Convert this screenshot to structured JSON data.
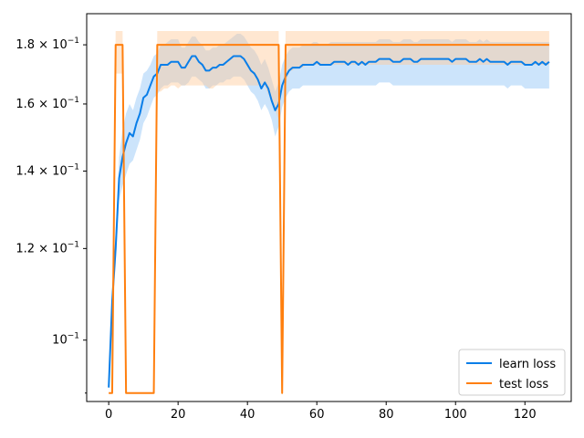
{
  "chart_data": {
    "type": "line",
    "title": "",
    "xlabel": "",
    "ylabel": "",
    "y_scale": "log",
    "xlim": [
      -6.35,
      133.35
    ],
    "ylim": [
      0.0885,
      0.1915
    ],
    "x_ticks": [
      0,
      20,
      40,
      60,
      80,
      100,
      120
    ],
    "x_tick_labels": [
      "0",
      "20",
      "40",
      "60",
      "80",
      "100",
      "120"
    ],
    "y_ticks": [
      0.1,
      0.12,
      0.14,
      0.16,
      0.18
    ],
    "y_tick_labels": [
      {
        "mantissa": "",
        "base": "10",
        "exp": "−1"
      },
      {
        "mantissa": "1.2",
        "base": "10",
        "exp": "−1"
      },
      {
        "mantissa": "1.4",
        "base": "10",
        "exp": "−1"
      },
      {
        "mantissa": "1.6",
        "base": "10",
        "exp": "−1"
      },
      {
        "mantissa": "1.8",
        "base": "10",
        "exp": "−1"
      }
    ],
    "grid": false,
    "legend": {
      "placement": "lower-right",
      "entries": [
        "learn loss",
        "test loss"
      ]
    },
    "series": [
      {
        "name": "learn loss",
        "color": "#0a7ee8",
        "band_color": "#8ec4f7",
        "x": [
          0,
          1,
          2,
          3,
          4,
          5,
          6,
          7,
          8,
          9,
          10,
          11,
          12,
          13,
          14,
          15,
          16,
          17,
          18,
          19,
          20,
          21,
          22,
          23,
          24,
          25,
          26,
          27,
          28,
          29,
          30,
          31,
          32,
          33,
          34,
          35,
          36,
          37,
          38,
          39,
          40,
          41,
          42,
          43,
          44,
          45,
          46,
          47,
          48,
          49,
          50,
          51,
          52,
          53,
          54,
          55,
          56,
          57,
          58,
          59,
          60,
          61,
          62,
          63,
          64,
          65,
          66,
          67,
          68,
          69,
          70,
          71,
          72,
          73,
          74,
          75,
          76,
          77,
          78,
          79,
          80,
          81,
          82,
          83,
          84,
          85,
          86,
          87,
          88,
          89,
          90,
          91,
          92,
          93,
          94,
          95,
          96,
          97,
          98,
          99,
          100,
          101,
          102,
          103,
          104,
          105,
          106,
          107,
          108,
          109,
          110,
          111,
          112,
          113,
          114,
          115,
          116,
          117,
          118,
          119,
          120,
          121,
          122,
          123,
          124,
          125,
          126,
          127
        ],
        "y": [
          0.091,
          0.108,
          0.12,
          0.138,
          0.144,
          0.148,
          0.151,
          0.15,
          0.154,
          0.157,
          0.162,
          0.163,
          0.166,
          0.169,
          0.17,
          0.173,
          0.173,
          0.173,
          0.174,
          0.174,
          0.174,
          0.172,
          0.172,
          0.174,
          0.176,
          0.176,
          0.174,
          0.173,
          0.171,
          0.171,
          0.172,
          0.172,
          0.173,
          0.173,
          0.174,
          0.175,
          0.176,
          0.176,
          0.176,
          0.175,
          0.173,
          0.171,
          0.17,
          0.168,
          0.165,
          0.167,
          0.165,
          0.161,
          0.158,
          0.16,
          0.166,
          0.169,
          0.171,
          0.172,
          0.172,
          0.172,
          0.173,
          0.173,
          0.173,
          0.173,
          0.174,
          0.173,
          0.173,
          0.173,
          0.173,
          0.174,
          0.174,
          0.174,
          0.174,
          0.173,
          0.174,
          0.174,
          0.173,
          0.174,
          0.173,
          0.174,
          0.174,
          0.174,
          0.175,
          0.175,
          0.175,
          0.175,
          0.174,
          0.174,
          0.174,
          0.175,
          0.175,
          0.175,
          0.174,
          0.174,
          0.175,
          0.175,
          0.175,
          0.175,
          0.175,
          0.175,
          0.175,
          0.175,
          0.175,
          0.174,
          0.175,
          0.175,
          0.175,
          0.175,
          0.174,
          0.174,
          0.174,
          0.175,
          0.174,
          0.175,
          0.174,
          0.174,
          0.174,
          0.174,
          0.174,
          0.173,
          0.174,
          0.174,
          0.174,
          0.174,
          0.173,
          0.173,
          0.173,
          0.174,
          0.173,
          0.174,
          0.173,
          0.174
        ],
        "lower": [
          0.09,
          0.105,
          0.116,
          0.132,
          0.136,
          0.139,
          0.142,
          0.143,
          0.146,
          0.149,
          0.154,
          0.156,
          0.159,
          0.162,
          0.163,
          0.165,
          0.166,
          0.166,
          0.167,
          0.167,
          0.167,
          0.166,
          0.166,
          0.167,
          0.169,
          0.169,
          0.168,
          0.167,
          0.165,
          0.165,
          0.166,
          0.166,
          0.167,
          0.167,
          0.168,
          0.168,
          0.169,
          0.169,
          0.169,
          0.168,
          0.166,
          0.164,
          0.163,
          0.161,
          0.158,
          0.16,
          0.158,
          0.155,
          0.15,
          0.153,
          0.159,
          0.162,
          0.164,
          0.165,
          0.165,
          0.165,
          0.166,
          0.166,
          0.166,
          0.166,
          0.166,
          0.166,
          0.166,
          0.166,
          0.166,
          0.166,
          0.166,
          0.166,
          0.166,
          0.166,
          0.166,
          0.166,
          0.166,
          0.166,
          0.166,
          0.166,
          0.166,
          0.166,
          0.167,
          0.167,
          0.167,
          0.167,
          0.166,
          0.166,
          0.166,
          0.166,
          0.166,
          0.166,
          0.166,
          0.166,
          0.166,
          0.166,
          0.166,
          0.166,
          0.166,
          0.166,
          0.166,
          0.166,
          0.166,
          0.166,
          0.166,
          0.166,
          0.166,
          0.166,
          0.166,
          0.166,
          0.166,
          0.166,
          0.166,
          0.166,
          0.166,
          0.166,
          0.166,
          0.166,
          0.166,
          0.165,
          0.166,
          0.166,
          0.166,
          0.166,
          0.165,
          0.165,
          0.165,
          0.165,
          0.165,
          0.165,
          0.165,
          0.165
        ],
        "upper": [
          0.092,
          0.111,
          0.124,
          0.144,
          0.152,
          0.157,
          0.16,
          0.158,
          0.162,
          0.165,
          0.17,
          0.171,
          0.173,
          0.176,
          0.177,
          0.18,
          0.18,
          0.181,
          0.182,
          0.182,
          0.182,
          0.179,
          0.179,
          0.181,
          0.183,
          0.183,
          0.181,
          0.18,
          0.178,
          0.178,
          0.179,
          0.179,
          0.18,
          0.18,
          0.181,
          0.182,
          0.183,
          0.184,
          0.184,
          0.183,
          0.181,
          0.179,
          0.178,
          0.176,
          0.173,
          0.175,
          0.172,
          0.168,
          0.164,
          0.167,
          0.173,
          0.176,
          0.178,
          0.179,
          0.179,
          0.179,
          0.18,
          0.18,
          0.18,
          0.181,
          0.181,
          0.18,
          0.18,
          0.18,
          0.181,
          0.181,
          0.181,
          0.181,
          0.181,
          0.181,
          0.181,
          0.181,
          0.181,
          0.181,
          0.181,
          0.181,
          0.181,
          0.181,
          0.182,
          0.182,
          0.182,
          0.182,
          0.181,
          0.181,
          0.181,
          0.182,
          0.182,
          0.182,
          0.181,
          0.181,
          0.182,
          0.182,
          0.182,
          0.182,
          0.182,
          0.182,
          0.182,
          0.182,
          0.182,
          0.181,
          0.182,
          0.182,
          0.182,
          0.182,
          0.181,
          0.181,
          0.181,
          0.182,
          0.181,
          0.182,
          0.181,
          0.181,
          0.181,
          0.181,
          0.181,
          0.181,
          0.181,
          0.181,
          0.181,
          0.181,
          0.181,
          0.181,
          0.181,
          0.181,
          0.181,
          0.181,
          0.181,
          0.181
        ]
      },
      {
        "name": "test loss",
        "color": "#ff7f0e",
        "band_color": "#ffc99a",
        "x": [
          0,
          1,
          2,
          3,
          4,
          5,
          6,
          7,
          8,
          9,
          10,
          11,
          12,
          13,
          14,
          15,
          16,
          17,
          18,
          19,
          20,
          21,
          22,
          23,
          24,
          25,
          26,
          27,
          28,
          29,
          30,
          31,
          32,
          33,
          34,
          35,
          36,
          37,
          38,
          39,
          40,
          41,
          42,
          43,
          44,
          45,
          46,
          47,
          48,
          49,
          50,
          51,
          52,
          53,
          54,
          55,
          56,
          57,
          58,
          59,
          60,
          61,
          62,
          63,
          64,
          65,
          66,
          67,
          68,
          69,
          70,
          71,
          72,
          73,
          74,
          75,
          76,
          77,
          78,
          79,
          80,
          81,
          82,
          83,
          84,
          85,
          86,
          87,
          88,
          89,
          90,
          91,
          92,
          93,
          94,
          95,
          96,
          97,
          98,
          99,
          100,
          101,
          102,
          103,
          104,
          105,
          106,
          107,
          108,
          109,
          110,
          111,
          112,
          113,
          114,
          115,
          116,
          117,
          118,
          119,
          120,
          121,
          122,
          123,
          124,
          125,
          126,
          127
        ],
        "y": [
          0.09,
          0.09,
          0.18,
          0.18,
          0.18,
          0.09,
          0.09,
          0.09,
          0.09,
          0.09,
          0.09,
          0.09,
          0.09,
          0.09,
          0.18,
          0.18,
          0.18,
          0.18,
          0.18,
          0.18,
          0.18,
          0.18,
          0.18,
          0.18,
          0.18,
          0.18,
          0.18,
          0.18,
          0.18,
          0.18,
          0.18,
          0.18,
          0.18,
          0.18,
          0.18,
          0.18,
          0.18,
          0.18,
          0.18,
          0.18,
          0.18,
          0.18,
          0.18,
          0.18,
          0.18,
          0.18,
          0.18,
          0.18,
          0.18,
          0.18,
          0.09,
          0.18,
          0.18,
          0.18,
          0.18,
          0.18,
          0.18,
          0.18,
          0.18,
          0.18,
          0.18,
          0.18,
          0.18,
          0.18,
          0.18,
          0.18,
          0.18,
          0.18,
          0.18,
          0.18,
          0.18,
          0.18,
          0.18,
          0.18,
          0.18,
          0.18,
          0.18,
          0.18,
          0.18,
          0.18,
          0.18,
          0.18,
          0.18,
          0.18,
          0.18,
          0.18,
          0.18,
          0.18,
          0.18,
          0.18,
          0.18,
          0.18,
          0.18,
          0.18,
          0.18,
          0.18,
          0.18,
          0.18,
          0.18,
          0.18,
          0.18,
          0.18,
          0.18,
          0.18,
          0.18,
          0.18,
          0.18,
          0.18,
          0.18,
          0.18,
          0.18,
          0.18,
          0.18,
          0.18,
          0.18,
          0.18,
          0.18,
          0.18,
          0.18,
          0.18,
          0.18,
          0.18,
          0.18,
          0.18,
          0.18,
          0.18,
          0.18,
          0.18
        ],
        "lower": [
          0.09,
          0.09,
          0.17,
          0.17,
          0.17,
          0.09,
          0.09,
          0.09,
          0.09,
          0.09,
          0.09,
          0.09,
          0.09,
          0.09,
          0.164,
          0.164,
          0.165,
          0.165,
          0.166,
          0.166,
          0.165,
          0.166,
          0.166,
          0.166,
          0.166,
          0.166,
          0.166,
          0.166,
          0.166,
          0.165,
          0.165,
          0.166,
          0.166,
          0.166,
          0.166,
          0.166,
          0.166,
          0.166,
          0.166,
          0.166,
          0.166,
          0.166,
          0.166,
          0.166,
          0.166,
          0.166,
          0.163,
          0.162,
          0.158,
          0.155,
          0.09,
          0.166,
          0.171,
          0.171,
          0.172,
          0.172,
          0.172,
          0.173,
          0.173,
          0.173,
          0.173,
          0.173,
          0.173,
          0.173,
          0.173,
          0.173,
          0.173,
          0.173,
          0.173,
          0.173,
          0.173,
          0.173,
          0.173,
          0.173,
          0.173,
          0.173,
          0.173,
          0.173,
          0.173,
          0.173,
          0.173,
          0.173,
          0.173,
          0.173,
          0.173,
          0.173,
          0.173,
          0.173,
          0.173,
          0.173,
          0.173,
          0.173,
          0.173,
          0.173,
          0.173,
          0.173,
          0.173,
          0.173,
          0.173,
          0.173,
          0.173,
          0.173,
          0.173,
          0.173,
          0.173,
          0.173,
          0.173,
          0.173,
          0.173,
          0.173,
          0.173,
          0.173,
          0.173,
          0.173,
          0.173,
          0.173,
          0.173,
          0.173,
          0.173,
          0.173,
          0.173,
          0.173,
          0.173,
          0.173,
          0.173,
          0.173,
          0.173,
          0.173
        ],
        "upper": [
          0.09,
          0.09,
          0.185,
          0.185,
          0.185,
          0.09,
          0.09,
          0.09,
          0.09,
          0.09,
          0.09,
          0.09,
          0.09,
          0.09,
          0.185,
          0.185,
          0.185,
          0.185,
          0.185,
          0.185,
          0.185,
          0.185,
          0.185,
          0.185,
          0.185,
          0.185,
          0.185,
          0.185,
          0.185,
          0.185,
          0.185,
          0.185,
          0.185,
          0.185,
          0.185,
          0.185,
          0.185,
          0.185,
          0.185,
          0.185,
          0.185,
          0.185,
          0.185,
          0.185,
          0.185,
          0.185,
          0.185,
          0.185,
          0.185,
          0.185,
          0.09,
          0.185,
          0.185,
          0.185,
          0.185,
          0.185,
          0.185,
          0.185,
          0.185,
          0.185,
          0.185,
          0.185,
          0.185,
          0.185,
          0.185,
          0.185,
          0.185,
          0.185,
          0.185,
          0.185,
          0.185,
          0.185,
          0.185,
          0.185,
          0.185,
          0.185,
          0.185,
          0.185,
          0.185,
          0.185,
          0.185,
          0.185,
          0.185,
          0.185,
          0.185,
          0.185,
          0.185,
          0.185,
          0.185,
          0.185,
          0.185,
          0.185,
          0.185,
          0.185,
          0.185,
          0.185,
          0.185,
          0.185,
          0.185,
          0.185,
          0.185,
          0.185,
          0.185,
          0.185,
          0.185,
          0.185,
          0.185,
          0.185,
          0.185,
          0.185,
          0.185,
          0.185,
          0.185,
          0.185,
          0.185,
          0.185,
          0.185,
          0.185,
          0.185,
          0.185,
          0.185,
          0.185,
          0.185,
          0.185,
          0.185,
          0.185,
          0.185,
          0.185
        ]
      }
    ]
  }
}
